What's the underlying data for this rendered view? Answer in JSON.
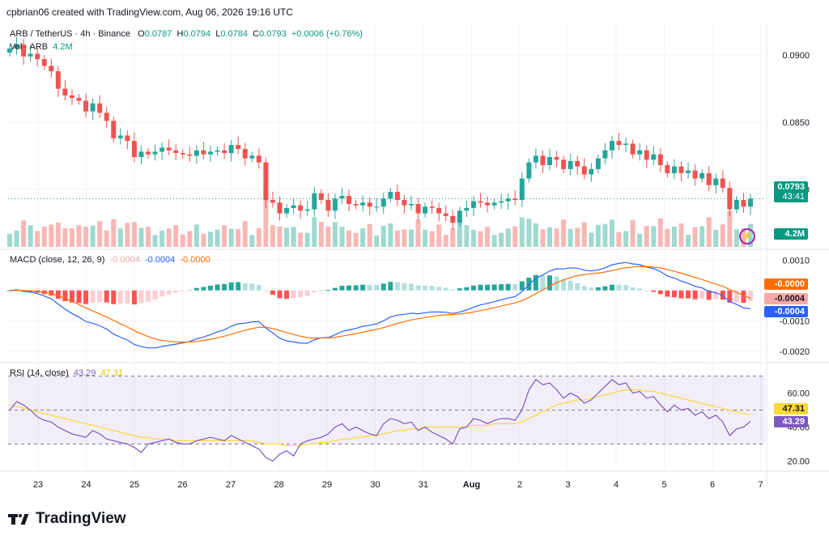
{
  "header": "cpbrian06 created with TradingView.com, Aug 06, 2026 19:16 UTC",
  "symbol_line": {
    "pair": "ARB / TetherUS · 4h · Binance",
    "o_label": "O",
    "o": "0.0787",
    "h_label": "H",
    "h": "0.0794",
    "l_label": "L",
    "l": "0.0784",
    "c_label": "C",
    "c": "0.0793",
    "change": "+0.0006 (+0.76%)"
  },
  "vol_line": {
    "label": "Vol · ARB",
    "value": "4.2M"
  },
  "macd_line": {
    "label": "MACD (close, 12, 26, 9)",
    "hist": "-0.0004",
    "macd": "-0.0004",
    "signal": "-0.0000"
  },
  "rsi_line": {
    "label": "RSI (14, close)",
    "rsi": "43.29",
    "ma": "47.31"
  },
  "badges": {
    "price": "0.0793",
    "countdown": "43:41",
    "volume": "4.2M",
    "macd_signal": "-0.0000",
    "macd_hist": "-0.0004",
    "macd_line": "-0.0004",
    "rsi_ma": "47.31",
    "rsi": "43.29"
  },
  "logo_text": "TradingView",
  "colors": {
    "up": "#26a69a",
    "down": "#ef5350",
    "macd": "#2962ff",
    "signal": "#ff6d00",
    "rsi": "#7e57c2",
    "rsi_ma": "#fdd835"
  },
  "chart_data": [
    {
      "type": "candlestick",
      "title": "ARB / TetherUS · 4h · Binance",
      "y_ticks": [
        "0.0900",
        "0.0850",
        "0.0800"
      ],
      "ylim": [
        0.076,
        0.092
      ],
      "x_ticks": [
        "23",
        "24",
        "25",
        "26",
        "27",
        "28",
        "29",
        "30",
        "31",
        "Aug",
        "2",
        "3",
        "4",
        "5",
        "6",
        "7"
      ],
      "close": [
        0.0905,
        0.0908,
        0.0899,
        0.0901,
        0.0897,
        0.0892,
        0.0888,
        0.0875,
        0.087,
        0.0868,
        0.0866,
        0.0858,
        0.0864,
        0.0857,
        0.0851,
        0.0838,
        0.084,
        0.0836,
        0.0824,
        0.0828,
        0.0826,
        0.0828,
        0.0831,
        0.0829,
        0.0827,
        0.0826,
        0.0825,
        0.0829,
        0.0826,
        0.0828,
        0.0829,
        0.0827,
        0.0833,
        0.083,
        0.0823,
        0.0825,
        0.082,
        0.0792,
        0.079,
        0.0782,
        0.0786,
        0.0788,
        0.0784,
        0.0785,
        0.0797,
        0.0792,
        0.0784,
        0.0793,
        0.0795,
        0.0789,
        0.0788,
        0.079,
        0.0787,
        0.0787,
        0.0793,
        0.0798,
        0.0792,
        0.0788,
        0.0789,
        0.0782,
        0.0787,
        0.0786,
        0.0782,
        0.078,
        0.0775,
        0.0784,
        0.0786,
        0.0791,
        0.079,
        0.0788,
        0.079,
        0.0791,
        0.0793,
        0.0792,
        0.0808,
        0.082,
        0.0825,
        0.0818,
        0.0824,
        0.0822,
        0.0815,
        0.0821,
        0.0817,
        0.0811,
        0.0815,
        0.0823,
        0.0829,
        0.0836,
        0.0833,
        0.0834,
        0.0826,
        0.0829,
        0.0822,
        0.0826,
        0.0818,
        0.0812,
        0.0817,
        0.0812,
        0.0814,
        0.0808,
        0.0812,
        0.0803,
        0.0808,
        0.0801,
        0.0785,
        0.0792,
        0.0787,
        0.0793
      ],
      "volume_label": "Vol · ARB 4.2M"
    },
    {
      "type": "line",
      "title": "MACD (close, 12, 26, 9)",
      "y_ticks": [
        "0.0010",
        "-0.0010",
        "-0.0020"
      ],
      "ylim": [
        -0.0023,
        0.0013
      ],
      "series": [
        {
          "name": "MACD"
        },
        {
          "name": "Signal"
        },
        {
          "name": "Histogram"
        }
      ]
    },
    {
      "type": "line",
      "title": "RSI (14, close)",
      "y_ticks": [
        "60.00",
        "40.00",
        "20.00"
      ],
      "ylim": [
        15,
        77
      ],
      "bands": [
        70,
        50,
        30
      ],
      "rsi": [
        50,
        55,
        53,
        50,
        46,
        44,
        43,
        40,
        38,
        36,
        35,
        34,
        38,
        36,
        33,
        32,
        31,
        30,
        28,
        25,
        30,
        31,
        32,
        33,
        31,
        30,
        30,
        32,
        33,
        34,
        33,
        32,
        35,
        33,
        31,
        29,
        27,
        22,
        20,
        24,
        26,
        23,
        30,
        32,
        33,
        34,
        36,
        40,
        42,
        38,
        40,
        38,
        36,
        35,
        42,
        45,
        44,
        42,
        43,
        38,
        40,
        37,
        35,
        33,
        30,
        39,
        40,
        45,
        44,
        42,
        44,
        45,
        45,
        44,
        50,
        62,
        68,
        65,
        66,
        62,
        57,
        60,
        58,
        54,
        56,
        60,
        64,
        68,
        65,
        66,
        60,
        61,
        57,
        58,
        53,
        49,
        53,
        50,
        51,
        47,
        49,
        45,
        47,
        43,
        35,
        39,
        40,
        43.29
      ],
      "rsi_ma": [
        53,
        52,
        51,
        50,
        49,
        48,
        47,
        46,
        45,
        44,
        43,
        42,
        41,
        40,
        39,
        38,
        37,
        36,
        35,
        34,
        34,
        33,
        33,
        33,
        32,
        32,
        32,
        32,
        32,
        32,
        32,
        32,
        32,
        32,
        32,
        32,
        31,
        30,
        30,
        30,
        29,
        29,
        29,
        30,
        30,
        31,
        31,
        32,
        33,
        33,
        34,
        34,
        35,
        35,
        36,
        37,
        38,
        38,
        39,
        39,
        40,
        40,
        40,
        40,
        40,
        40,
        40,
        41,
        41,
        41,
        42,
        42,
        42,
        42,
        43,
        45,
        47,
        49,
        51,
        53,
        54,
        55,
        56,
        56,
        57,
        58,
        59,
        60,
        61,
        62,
        62,
        62,
        61,
        61,
        60,
        59,
        58,
        57,
        56,
        55,
        54,
        53,
        52,
        51,
        50,
        49,
        48,
        47.31
      ]
    }
  ]
}
